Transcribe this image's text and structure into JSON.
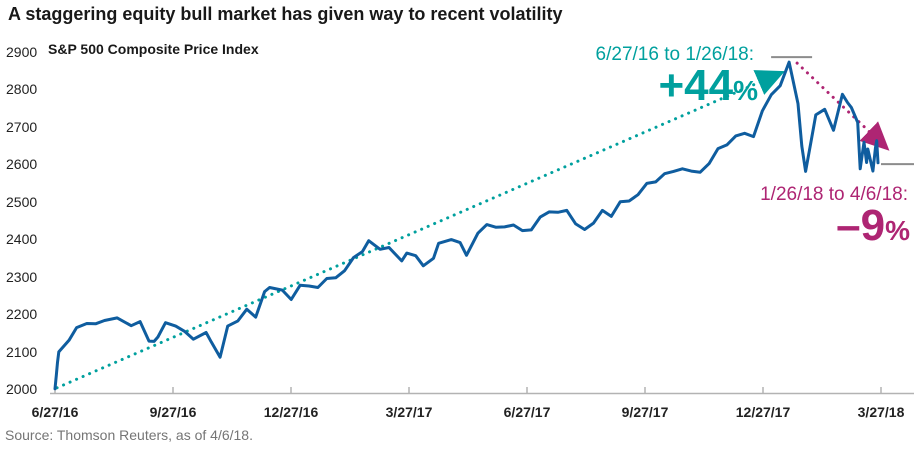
{
  "page": {
    "title": "A staggering equity bull market has given way to recent volatility"
  },
  "chart": {
    "index_label": "S&P 500 Composite Price Index"
  },
  "annotations": {
    "gain": {
      "label": "6/27/16 to 1/26/18:",
      "value": "+44",
      "unit": "%"
    },
    "loss": {
      "label": "1/26/18 to 4/6/18:",
      "value": "–9",
      "unit": "%"
    }
  },
  "source": {
    "text": "Source: Thomson Reuters, as of 4/6/18."
  },
  "colors": {
    "line_blue": "#0f5d9f",
    "trend_teal": "#00a09e",
    "trend_magenta": "#ae2573",
    "reference_gray": "#8c8c8c",
    "axis_gray": "#b3b3b3",
    "text_dark": "#191919",
    "source_gray": "#757575"
  },
  "chart_data": {
    "type": "line",
    "title": "A staggering equity bull market has given way to recent volatility",
    "series_name": "S&P 500 Composite Price Index",
    "xlabel": "",
    "ylabel": "S&P 500 Composite Price Index",
    "ylim": [
      2000,
      2900
    ],
    "grid": false,
    "legend_position": "none",
    "y_ticks": [
      2900,
      2800,
      2700,
      2600,
      2500,
      2400,
      2300,
      2200,
      2100,
      2000
    ],
    "x_tick_labels": [
      "6/27/16",
      "9/27/16",
      "12/27/16",
      "3/27/17",
      "6/27/17",
      "9/27/17",
      "12/27/17",
      "3/27/18"
    ],
    "x_range": [
      "2016-06-27",
      "2018-04-06"
    ],
    "key_points": {
      "start": [
        "2016-06-27",
        2000.5
      ],
      "peak": [
        "2018-01-26",
        2872.9
      ],
      "feb_low": [
        "2018-02-08",
        2581.0
      ],
      "end": [
        "2018-04-06",
        2604.5
      ]
    },
    "change_annotations": [
      {
        "from": "6/27/16",
        "to": "1/26/18",
        "change_pct": 44
      },
      {
        "from": "1/26/18",
        "to": "4/6/18",
        "change_pct": -9
      }
    ],
    "points": [
      [
        "2016-06-27",
        2000.5
      ],
      [
        "2016-06-28",
        2036
      ],
      [
        "2016-06-29",
        2071
      ],
      [
        "2016-06-30",
        2099
      ],
      [
        "2016-07-01",
        2103
      ],
      [
        "2016-07-08",
        2130
      ],
      [
        "2016-07-14",
        2164
      ],
      [
        "2016-07-22",
        2175
      ],
      [
        "2016-07-29",
        2174
      ],
      [
        "2016-08-05",
        2183
      ],
      [
        "2016-08-15",
        2190
      ],
      [
        "2016-08-26",
        2169
      ],
      [
        "2016-09-02",
        2180
      ],
      [
        "2016-09-09",
        2128
      ],
      [
        "2016-09-13",
        2127
      ],
      [
        "2016-09-16",
        2139
      ],
      [
        "2016-09-22",
        2177
      ],
      [
        "2016-09-30",
        2168
      ],
      [
        "2016-10-07",
        2154
      ],
      [
        "2016-10-14",
        2133
      ],
      [
        "2016-10-24",
        2151
      ],
      [
        "2016-10-28",
        2126
      ],
      [
        "2016-11-04",
        2085
      ],
      [
        "2016-11-10",
        2168
      ],
      [
        "2016-11-18",
        2182
      ],
      [
        "2016-11-25",
        2213
      ],
      [
        "2016-12-02",
        2192
      ],
      [
        "2016-12-09",
        2260
      ],
      [
        "2016-12-13",
        2271
      ],
      [
        "2016-12-23",
        2264
      ],
      [
        "2016-12-30",
        2239
      ],
      [
        "2017-01-06",
        2277
      ],
      [
        "2017-01-13",
        2275
      ],
      [
        "2017-01-20",
        2271
      ],
      [
        "2017-01-27",
        2295
      ],
      [
        "2017-02-03",
        2297
      ],
      [
        "2017-02-10",
        2316
      ],
      [
        "2017-02-17",
        2351
      ],
      [
        "2017-02-24",
        2367
      ],
      [
        "2017-03-01",
        2396
      ],
      [
        "2017-03-10",
        2373
      ],
      [
        "2017-03-17",
        2378
      ],
      [
        "2017-03-27",
        2342
      ],
      [
        "2017-03-31",
        2363
      ],
      [
        "2017-04-07",
        2356
      ],
      [
        "2017-04-13",
        2329
      ],
      [
        "2017-04-21",
        2349
      ],
      [
        "2017-04-25",
        2389
      ],
      [
        "2017-05-05",
        2399
      ],
      [
        "2017-05-12",
        2391
      ],
      [
        "2017-05-17",
        2357
      ],
      [
        "2017-05-26",
        2416
      ],
      [
        "2017-06-02",
        2439
      ],
      [
        "2017-06-09",
        2432
      ],
      [
        "2017-06-16",
        2433
      ],
      [
        "2017-06-23",
        2438
      ],
      [
        "2017-06-30",
        2423
      ],
      [
        "2017-07-07",
        2425
      ],
      [
        "2017-07-14",
        2459
      ],
      [
        "2017-07-21",
        2473
      ],
      [
        "2017-07-28",
        2472
      ],
      [
        "2017-08-04",
        2477
      ],
      [
        "2017-08-11",
        2441
      ],
      [
        "2017-08-18",
        2426
      ],
      [
        "2017-08-25",
        2443
      ],
      [
        "2017-09-01",
        2477
      ],
      [
        "2017-09-08",
        2461
      ],
      [
        "2017-09-15",
        2500
      ],
      [
        "2017-09-22",
        2502
      ],
      [
        "2017-09-29",
        2519
      ],
      [
        "2017-10-06",
        2549
      ],
      [
        "2017-10-13",
        2553
      ],
      [
        "2017-10-20",
        2575
      ],
      [
        "2017-10-27",
        2581
      ],
      [
        "2017-11-03",
        2588
      ],
      [
        "2017-11-10",
        2582
      ],
      [
        "2017-11-17",
        2579
      ],
      [
        "2017-11-24",
        2602
      ],
      [
        "2017-12-01",
        2642
      ],
      [
        "2017-12-08",
        2652
      ],
      [
        "2017-12-15",
        2676
      ],
      [
        "2017-12-22",
        2683
      ],
      [
        "2017-12-29",
        2674
      ],
      [
        "2018-01-05",
        2743
      ],
      [
        "2018-01-12",
        2786
      ],
      [
        "2018-01-19",
        2810
      ],
      [
        "2018-01-26",
        2873
      ],
      [
        "2018-02-02",
        2762
      ],
      [
        "2018-02-05",
        2649
      ],
      [
        "2018-02-08",
        2581
      ],
      [
        "2018-02-12",
        2656
      ],
      [
        "2018-02-16",
        2732
      ],
      [
        "2018-02-23",
        2747
      ],
      [
        "2018-03-02",
        2691
      ],
      [
        "2018-03-09",
        2787
      ],
      [
        "2018-03-13",
        2765
      ],
      [
        "2018-03-16",
        2752
      ],
      [
        "2018-03-21",
        2712
      ],
      [
        "2018-03-23",
        2588
      ],
      [
        "2018-03-26",
        2659
      ],
      [
        "2018-03-28",
        2605
      ],
      [
        "2018-03-29",
        2641
      ],
      [
        "2018-04-02",
        2582
      ],
      [
        "2018-04-04",
        2645
      ],
      [
        "2018-04-05",
        2663
      ],
      [
        "2018-04-06",
        2604
      ]
    ]
  }
}
